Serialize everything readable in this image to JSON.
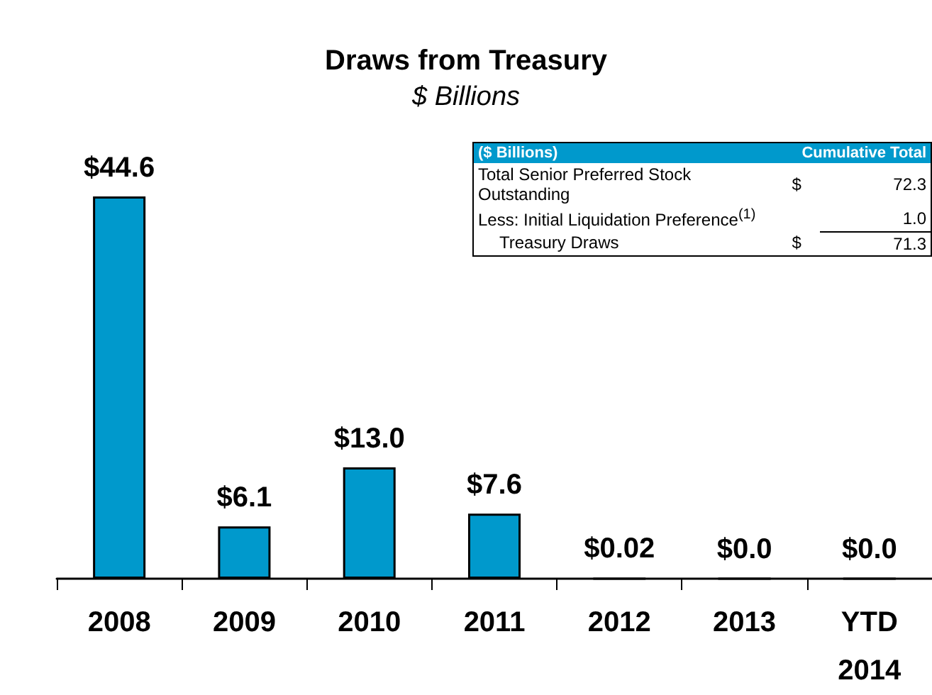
{
  "chart_data": {
    "type": "bar",
    "title": "Draws from Treasury",
    "subtitle": "$ Billions",
    "categories": [
      "2008",
      "2009",
      "2010",
      "2011",
      "2012",
      "2013",
      "YTD\n2014"
    ],
    "values": [
      44.6,
      6.1,
      13.0,
      7.6,
      0.02,
      0,
      0
    ],
    "value_labels": [
      "$44.6",
      "$6.1",
      "$13.0",
      "$7.6",
      "$0.02",
      "$0.0",
      "$0.0"
    ],
    "color": "#0099cc",
    "annotations": [
      "($ Billions)",
      "Cumulative Total",
      "Total Senior Preferred Stock Outstanding",
      "$",
      "72.3",
      "Less:  Initial Liquidation Preference$^{(1)}$",
      "1.0",
      "Treasury Draws",
      "$",
      "71.3"
    ]
  }
}
